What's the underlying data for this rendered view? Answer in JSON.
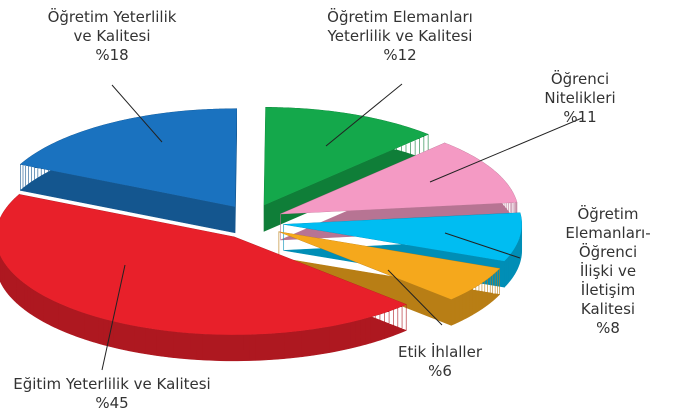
{
  "chart_data": {
    "type": "pie",
    "categories": [
      "Öğretim Yeterlilik\nve Kalitesi",
      "Öğretim Elemanları\nYeterlilik ve Kalitesi",
      "Öğrenci Nitelikleri",
      "Öğretim\nElemanları-Öğrenci\nİlişki ve İletişim\nKalitesi",
      "Etik İhlaller",
      "Eğitim Yeterlilik ve Kalitesi"
    ],
    "values": [
      18,
      12,
      11,
      8,
      6,
      45
    ],
    "value_labels": [
      "%18",
      "%12",
      "%11",
      "%8",
      "%6",
      "%45"
    ],
    "colors": [
      "#1a72bf",
      "#14a84b",
      "#f49ac4",
      "#00bdf2",
      "#f5a81c",
      "#e8202a"
    ]
  }
}
